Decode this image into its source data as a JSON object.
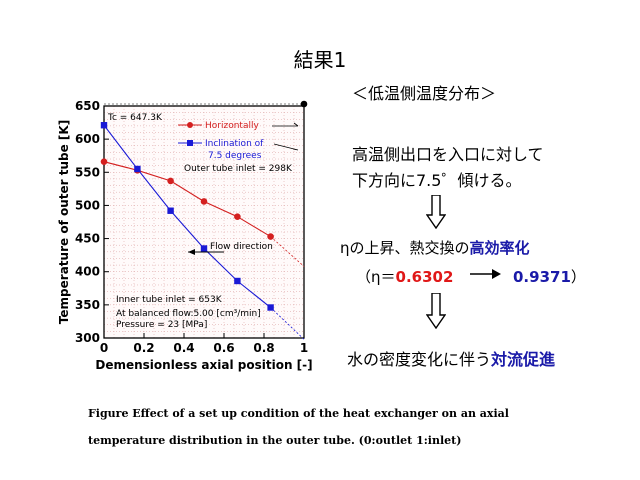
{
  "title": "結果1",
  "heading": "＜低温側温度分布＞",
  "description": [
    "高温側出口を入口に対して",
    "下方向に7.5゜傾ける。"
  ],
  "result_prefix": "ηの上昇、熱交換の",
  "result_emphasis": "高効率化",
  "eta_prefix": "（η＝",
  "eta_from": "0.6302",
  "eta_to": "0.9371",
  "eta_suffix": "）",
  "water_prefix": "水の密度変化に伴う",
  "water_emphasis": "対流促進",
  "caption_line1": "Figure   Effect of a set up condition of the heat exchanger on an axial",
  "caption_line2": "temperature distribution in the outer tube. (0:outlet 1:inlet)",
  "colors": {
    "red_series": "#d42020",
    "blue_series": "#1a1ad6",
    "result_blue": "#1a1aa8",
    "result_red": "#e01818"
  },
  "chart_data": {
    "type": "line",
    "xlabel": "Demensionless axial position [-]",
    "ylabel": "Temperature of outer tube [K]",
    "xlim": [
      0,
      1
    ],
    "ylim": [
      300,
      650
    ],
    "xticks": [
      "0",
      "0.2",
      "0.4",
      "0.6",
      "0.8",
      "1"
    ],
    "yticks": [
      "300",
      "350",
      "400",
      "450",
      "500",
      "550",
      "600",
      "650"
    ],
    "grid": true,
    "series": [
      {
        "name": "Horizontally",
        "color": "#d42020",
        "marker": "circle",
        "x": [
          0,
          0.167,
          0.333,
          0.5,
          0.667,
          0.833
        ],
        "y": [
          566,
          553,
          537,
          506,
          483,
          453
        ]
      },
      {
        "name": "Inclination of 7.5 degrees",
        "color": "#1a1ad6",
        "marker": "square",
        "x": [
          0,
          0.167,
          0.333,
          0.5,
          0.667,
          0.833
        ],
        "y": [
          621,
          555,
          492,
          435,
          386,
          346
        ]
      }
    ],
    "inlet_point": {
      "x": 1,
      "y": 653
    },
    "annotations": {
      "tc": "Tc = 647.3K",
      "outer_inlet": "Outer tube inlet = 298K",
      "flow": "Flow direction",
      "inner_inlet": "Inner tube inlet = 653K",
      "balanced": "At balanced flow:5.00 [cm³/min]",
      "pressure": "Pressure = 23 [MPa]"
    }
  }
}
